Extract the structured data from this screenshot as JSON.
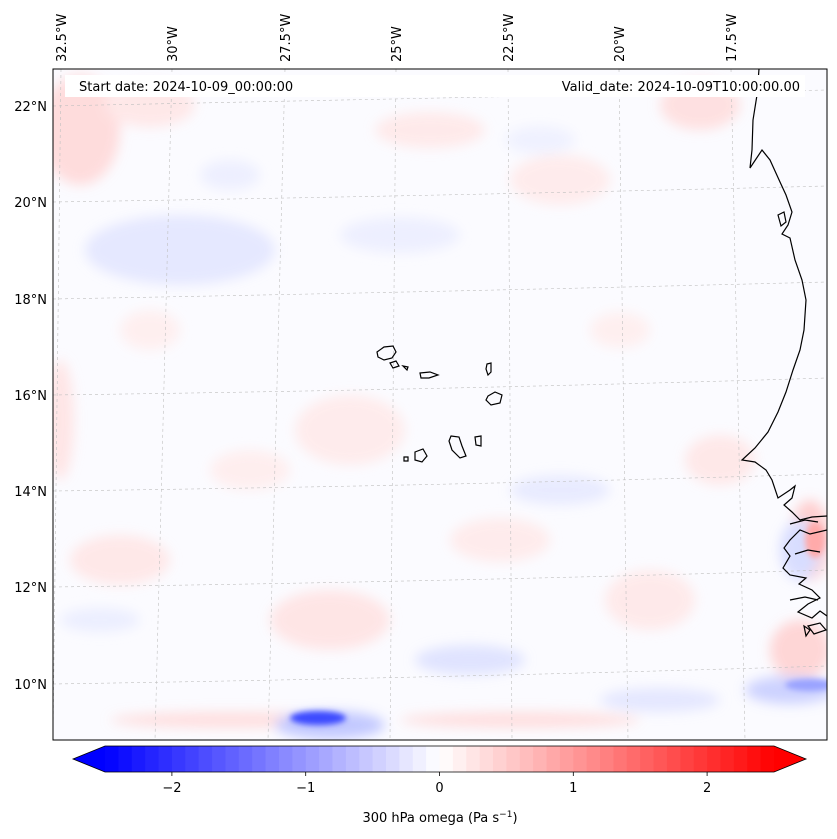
{
  "map": {
    "start_date_label": "Start date: 2024-10-09_00:00:00",
    "valid_date_label": "Valid_date: 2024-10-09T10:00:00.00",
    "lon_labels": [
      "32.5°W",
      "30°W",
      "27.5°W",
      "25°W",
      "22.5°W",
      "20°W",
      "17.5°W"
    ],
    "lat_labels": [
      "22°N",
      "20°N",
      "18°N",
      "16°N",
      "14°N",
      "12°N",
      "10°N"
    ],
    "field": "300 hPa omega",
    "regions": [
      "Cabo Verde islands",
      "West African coastline (Mauritania / Senegal / Gambia / Guinea-Bissau)"
    ]
  },
  "colorbar": {
    "label_main": "300 hPa omega (Pa s",
    "label_sup": "−1",
    "label_close": ")",
    "ticks": [
      "−2",
      "−1",
      "0",
      "1",
      "2"
    ],
    "tick_values": [
      -2,
      -1,
      0,
      1,
      2
    ],
    "range": [
      -2.5,
      2.5
    ],
    "low_color": "#0000ff",
    "mid_color": "#ffffff",
    "high_color": "#ff0000"
  }
}
